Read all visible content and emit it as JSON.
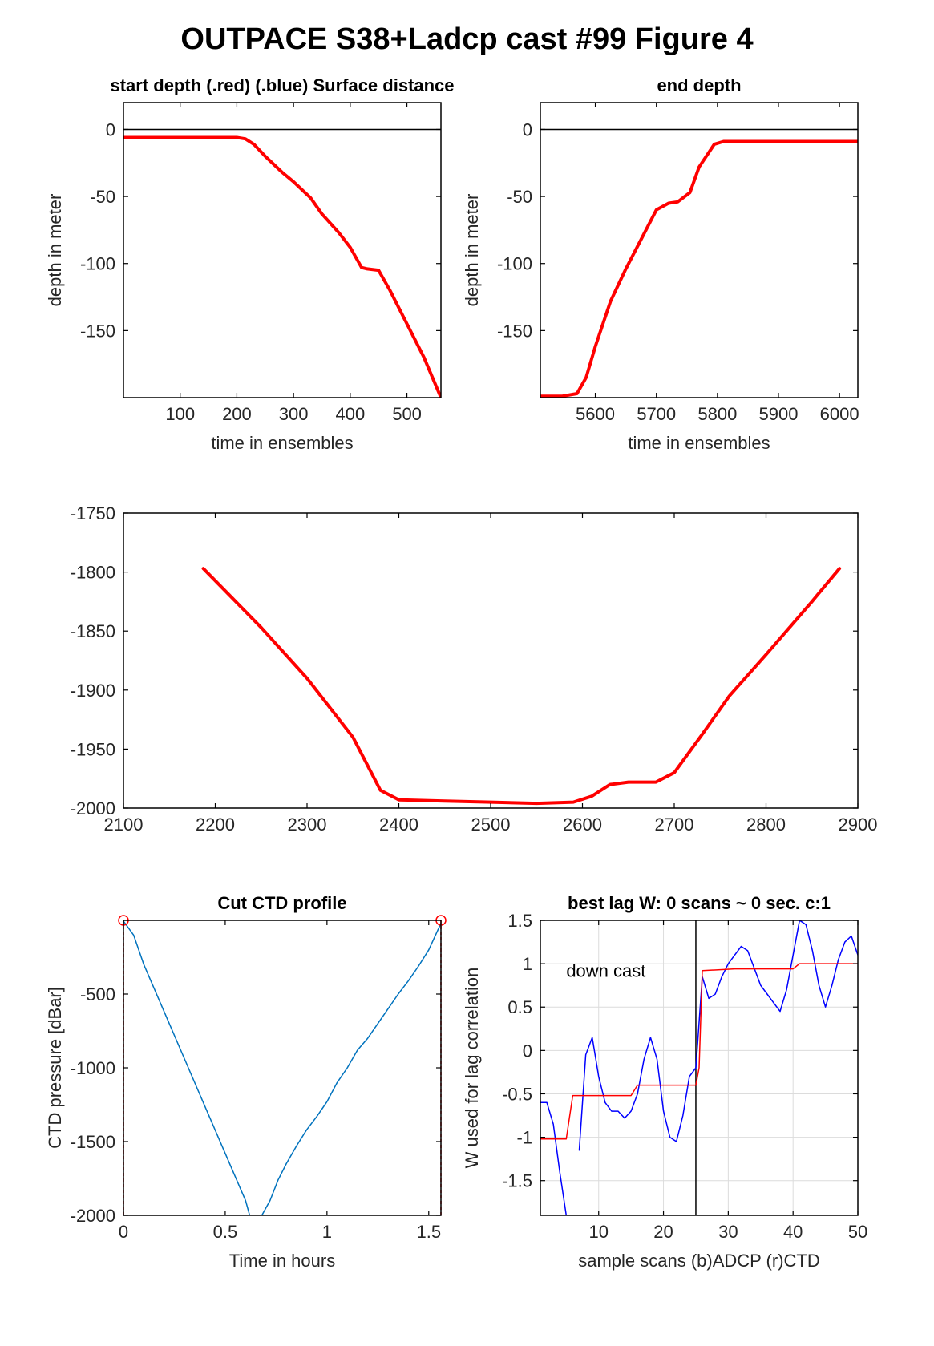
{
  "figure_title": "OUTPACE S38+Ladcp cast #99   Figure 4",
  "colors": {
    "red": "#ff0000",
    "blue": "#0000ff",
    "ctd_line": "#0072bd",
    "axis": "#000000",
    "grid": "#dcdcdc"
  },
  "chart_data": [
    {
      "id": "start",
      "type": "line",
      "title": "start depth (.red) (.blue) Surface distance",
      "xlabel": "time in ensembles",
      "ylabel": "depth in meter",
      "xlim": [
        0,
        560
      ],
      "ylim": [
        -200,
        20
      ],
      "xticks": [
        100,
        200,
        300,
        400,
        500
      ],
      "yticks": [
        0,
        -50,
        -100,
        -150
      ],
      "hlines": [
        0
      ],
      "series": [
        {
          "color": "red",
          "width": 4,
          "x": [
            0,
            100,
            200,
            215,
            230,
            250,
            280,
            300,
            330,
            350,
            380,
            400,
            420,
            430,
            450,
            470,
            500,
            530,
            560
          ],
          "y": [
            -6,
            -6,
            -6,
            -7,
            -11,
            -20,
            -32,
            -39,
            -51,
            -63,
            -77,
            -88,
            -103,
            -104,
            -105,
            -120,
            -145,
            -170,
            -200
          ]
        }
      ]
    },
    {
      "id": "end",
      "type": "line",
      "title": "end depth",
      "xlabel": "time in ensembles",
      "ylabel": "depth in meter",
      "xlim": [
        5510,
        6030
      ],
      "ylim": [
        -200,
        20
      ],
      "xticks": [
        5600,
        5700,
        5800,
        5900,
        6000
      ],
      "yticks": [
        0,
        -50,
        -100,
        -150
      ],
      "hlines": [
        0
      ],
      "series": [
        {
          "color": "red",
          "width": 4,
          "x": [
            5510,
            5545,
            5570,
            5585,
            5600,
            5625,
            5650,
            5675,
            5700,
            5720,
            5735,
            5755,
            5770,
            5795,
            5810,
            6030
          ],
          "y": [
            -199,
            -199,
            -197,
            -185,
            -162,
            -128,
            -104,
            -82,
            -60,
            -55,
            -54,
            -47,
            -28,
            -11,
            -9,
            -9
          ]
        }
      ]
    },
    {
      "id": "bottom",
      "type": "line",
      "xlim": [
        2100,
        2900
      ],
      "ylim": [
        -2000,
        -1750
      ],
      "xticks": [
        2100,
        2200,
        2300,
        2400,
        2500,
        2600,
        2700,
        2800,
        2900
      ],
      "yticks": [
        -1750,
        -1800,
        -1850,
        -1900,
        -1950,
        -2000
      ],
      "series": [
        {
          "color": "red",
          "width": 4,
          "x": [
            2187,
            2250,
            2300,
            2350,
            2380,
            2400,
            2450,
            2500,
            2550,
            2590,
            2610,
            2630,
            2650,
            2680,
            2700,
            2730,
            2760,
            2800,
            2850,
            2880
          ],
          "y": [
            -1797,
            -1847,
            -1890,
            -1940,
            -1985,
            -1993,
            -1994,
            -1995,
            -1996,
            -1995,
            -1990,
            -1980,
            -1978,
            -1978,
            -1970,
            -1938,
            -1905,
            -1870,
            -1825,
            -1797
          ]
        }
      ]
    },
    {
      "id": "ctd",
      "type": "line",
      "title": "Cut CTD profile",
      "xlabel": "Time in hours",
      "ylabel": "CTD pressure [dBar]",
      "xlim": [
        0,
        1.56
      ],
      "ylim": [
        -2000,
        0
      ],
      "xticks": [
        0,
        0.5,
        1,
        1.5
      ],
      "xticklabels": [
        "0",
        "0.5",
        "1",
        "1.5"
      ],
      "yticks": [
        -500,
        -1000,
        -1500,
        -2000
      ],
      "vlines_dashed": [
        0,
        1.56
      ],
      "markers": [
        {
          "x": 0,
          "y": 0
        },
        {
          "x": 1.56,
          "y": 0
        }
      ],
      "series": [
        {
          "color": "ctd_line",
          "width": 1.5,
          "x": [
            0,
            0.05,
            0.1,
            0.2,
            0.3,
            0.4,
            0.5,
            0.6,
            0.62,
            0.68,
            0.72,
            0.76,
            0.8,
            0.85,
            0.9,
            0.95,
            1.0,
            1.05,
            1.1,
            1.15,
            1.2,
            1.25,
            1.3,
            1.35,
            1.4,
            1.45,
            1.5,
            1.56
          ],
          "y": [
            -5,
            -100,
            -300,
            -620,
            -940,
            -1260,
            -1580,
            -1900,
            -2000,
            -2000,
            -1900,
            -1760,
            -1650,
            -1530,
            -1420,
            -1330,
            -1230,
            -1100,
            -1000,
            -880,
            -800,
            -700,
            -600,
            -500,
            -410,
            -310,
            -200,
            -20
          ]
        }
      ]
    },
    {
      "id": "lag",
      "type": "line",
      "title": "best lag W: 0 scans ~ 0 sec.  c:1",
      "xlabel": "sample scans (b)ADCP (r)CTD",
      "ylabel": "W used for lag correlation",
      "xlim": [
        1,
        50
      ],
      "ylim": [
        -1.9,
        1.5
      ],
      "xticks": [
        10,
        20,
        30,
        40,
        50
      ],
      "yticks": [
        1.5,
        1,
        0.5,
        0,
        -0.5,
        -1,
        -1.5
      ],
      "grid": true,
      "vlines": [
        25
      ],
      "annotation": {
        "text": "down cast",
        "x": 5,
        "y": 0.85
      },
      "series": [
        {
          "color": "blue",
          "width": 1.5,
          "x": [
            1,
            2,
            3,
            4,
            5,
            6,
            7,
            8,
            9,
            10,
            11,
            12,
            13,
            14,
            15,
            16,
            17,
            18,
            19,
            20,
            21,
            22,
            23,
            24,
            25,
            26,
            27,
            28,
            29,
            30,
            31,
            32,
            33,
            34,
            35,
            36,
            37,
            38,
            39,
            40,
            41,
            42,
            43,
            44,
            45,
            46,
            47,
            48,
            49,
            50
          ],
          "y": [
            -0.6,
            -0.6,
            -0.85,
            -1.4,
            -1.9,
            null,
            -1.15,
            -0.05,
            0.15,
            -0.3,
            -0.6,
            -0.7,
            -0.7,
            -0.78,
            -0.7,
            -0.5,
            -0.1,
            0.15,
            -0.1,
            -0.7,
            -1.0,
            -1.05,
            -0.75,
            -0.3,
            -0.2,
            0.85,
            0.6,
            0.65,
            0.85,
            1.0,
            1.1,
            1.2,
            1.15,
            0.95,
            0.75,
            0.65,
            0.55,
            0.45,
            0.7,
            1.1,
            1.5,
            1.45,
            1.15,
            0.75,
            0.5,
            0.75,
            1.05,
            1.25,
            1.32,
            1.1
          ]
        },
        {
          "color": "red",
          "width": 1.5,
          "x": [
            1,
            5,
            6,
            15,
            16,
            25,
            25.5,
            26,
            31,
            40,
            41,
            50
          ],
          "y": [
            -1.02,
            -1.02,
            -0.52,
            -0.52,
            -0.4,
            -0.4,
            -0.2,
            0.92,
            0.94,
            0.94,
            1.0,
            1.0
          ]
        }
      ]
    }
  ]
}
